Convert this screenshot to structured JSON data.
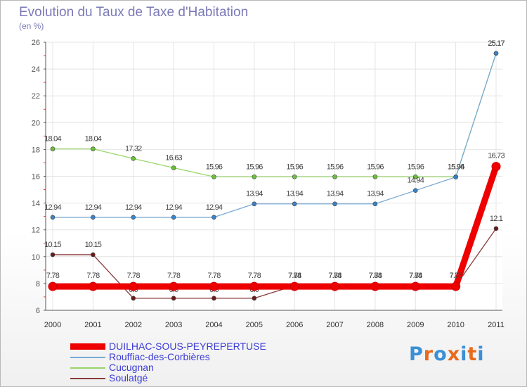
{
  "title": "Evolution du Taux de Taxe d'Habitation",
  "subtitle": "(en %)",
  "logo": {
    "text": "Proxiti",
    "colors": [
      "#3b8fd6",
      "#e86a1c",
      "#3b8fd6",
      "#e86a1c",
      "#3b8fd6",
      "#e86a1c",
      "#3b8fd6"
    ]
  },
  "chart_data": {
    "type": "line",
    "x": [
      "2000",
      "2001",
      "2002",
      "2003",
      "2004",
      "2005",
      "2006",
      "2007",
      "2008",
      "2009",
      "2010",
      "2011"
    ],
    "ylim": [
      6,
      26
    ],
    "yticks": [
      "6",
      "8",
      "10",
      "12",
      "14",
      "16",
      "18",
      "20",
      "22",
      "24",
      "26"
    ],
    "grid": true,
    "legend_position": "bottom-left",
    "series": [
      {
        "name": "Cucugnan",
        "color": "#99d66b",
        "point_color": "#6abf3a",
        "values": [
          18.04,
          18.04,
          17.32,
          16.63,
          15.96,
          15.96,
          15.96,
          15.96,
          15.96,
          15.96,
          15.96,
          25.17
        ],
        "labels": [
          "18.04",
          "18.04",
          "17.32",
          "16.63",
          "15.96",
          "15.96",
          "15.96",
          "15.96",
          "15.96",
          "15.96",
          "15.96",
          "25.17"
        ]
      },
      {
        "name": "Rouffiac-des-Corbières",
        "color": "#7aaad4",
        "point_color": "#3a82c4",
        "values": [
          12.94,
          12.94,
          12.94,
          12.94,
          12.94,
          13.94,
          13.94,
          13.94,
          13.94,
          14.94,
          15.94,
          25.17
        ],
        "labels": [
          "12.94",
          "12.94",
          "12.94",
          "12.94",
          "12.94",
          "13.94",
          "13.94",
          "13.94",
          "13.94",
          "14.94",
          "15.94",
          "25.17"
        ]
      },
      {
        "name": "Soulatgé",
        "color": "#8a3a3a",
        "point_color": "#6a1a1a",
        "values": [
          10.15,
          10.15,
          6.9,
          6.9,
          6.9,
          6.9,
          7.84,
          7.84,
          7.84,
          7.84,
          7.84,
          12.1
        ],
        "labels": [
          "10.15",
          "10.15",
          "6.9",
          "6.9",
          "6.9",
          "6.9",
          "7.84",
          "7.84",
          "7.84",
          "7.84",
          "7.84",
          "12.1"
        ]
      },
      {
        "name": "DUILHAC-SOUS-PEYREPERTUSE",
        "color": "#ee0000",
        "point_color": "#ee0000",
        "values": [
          7.78,
          7.78,
          7.78,
          7.78,
          7.78,
          7.78,
          7.78,
          7.78,
          7.78,
          7.78,
          7.78,
          16.73
        ],
        "labels": [
          "7.78",
          "7.78",
          "7.78",
          "7.78",
          "7.78",
          "7.78",
          "7.78",
          "7.78",
          "7.78",
          "7.78",
          "7.78",
          "16.73"
        ]
      }
    ],
    "legend": [
      {
        "name": "DUILHAC-SOUS-PEYREPERTUSE",
        "color": "#ee0000",
        "text_color": "#3b3bd6"
      },
      {
        "name": "Rouffiac-des-Corbières",
        "color": "#7aaad4",
        "text_color": "#3b3bd6"
      },
      {
        "name": "Cucugnan",
        "color": "#99d66b",
        "text_color": "#3b3bd6"
      },
      {
        "name": "Soulatgé",
        "color": "#8a3a3a",
        "text_color": "#3b3bd6"
      }
    ]
  }
}
